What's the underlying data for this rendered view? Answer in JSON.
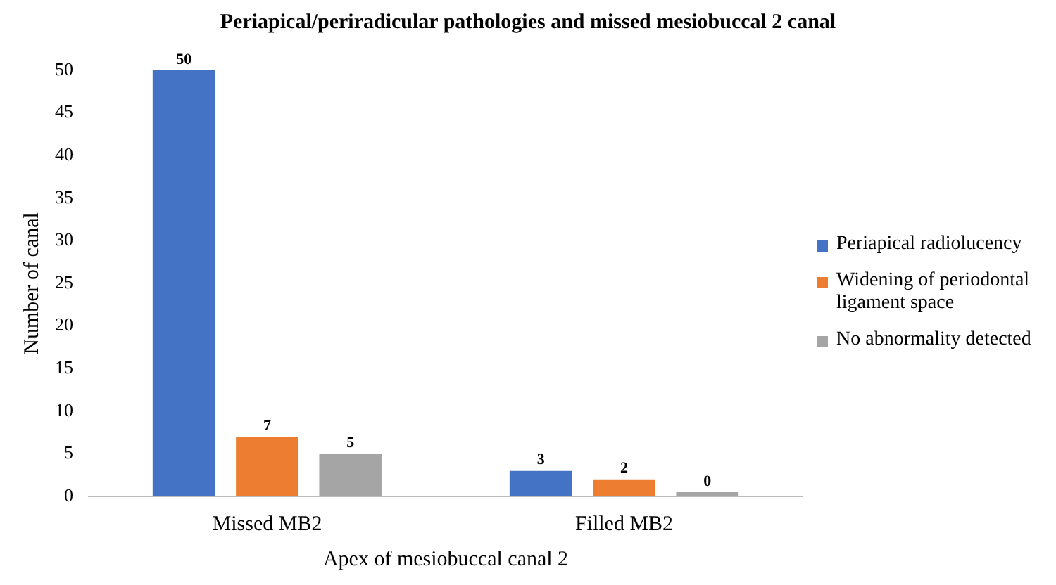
{
  "chart_data": {
    "type": "bar",
    "title": "Periapical/periradicular pathologies and missed mesiobuccal 2 canal",
    "xlabel": "Apex of mesiobuccal canal 2",
    "ylabel": "Number of canal",
    "categories": [
      "Missed MB2",
      "Filled MB2"
    ],
    "series": [
      {
        "name": "Periapical radiolucency",
        "color": "#4472c4",
        "values": [
          50,
          3
        ]
      },
      {
        "name": "Widening of periodontal ligament space",
        "color": "#ed7d31",
        "values": [
          7,
          2
        ]
      },
      {
        "name": "No abnormality detected",
        "color": "#a5a5a5",
        "values": [
          5,
          0
        ]
      }
    ],
    "ylim": [
      0,
      50
    ],
    "yticks": [
      0,
      5,
      10,
      15,
      20,
      25,
      30,
      35,
      40,
      45,
      50
    ],
    "grid": false,
    "legend": "right",
    "data_labels": true
  }
}
